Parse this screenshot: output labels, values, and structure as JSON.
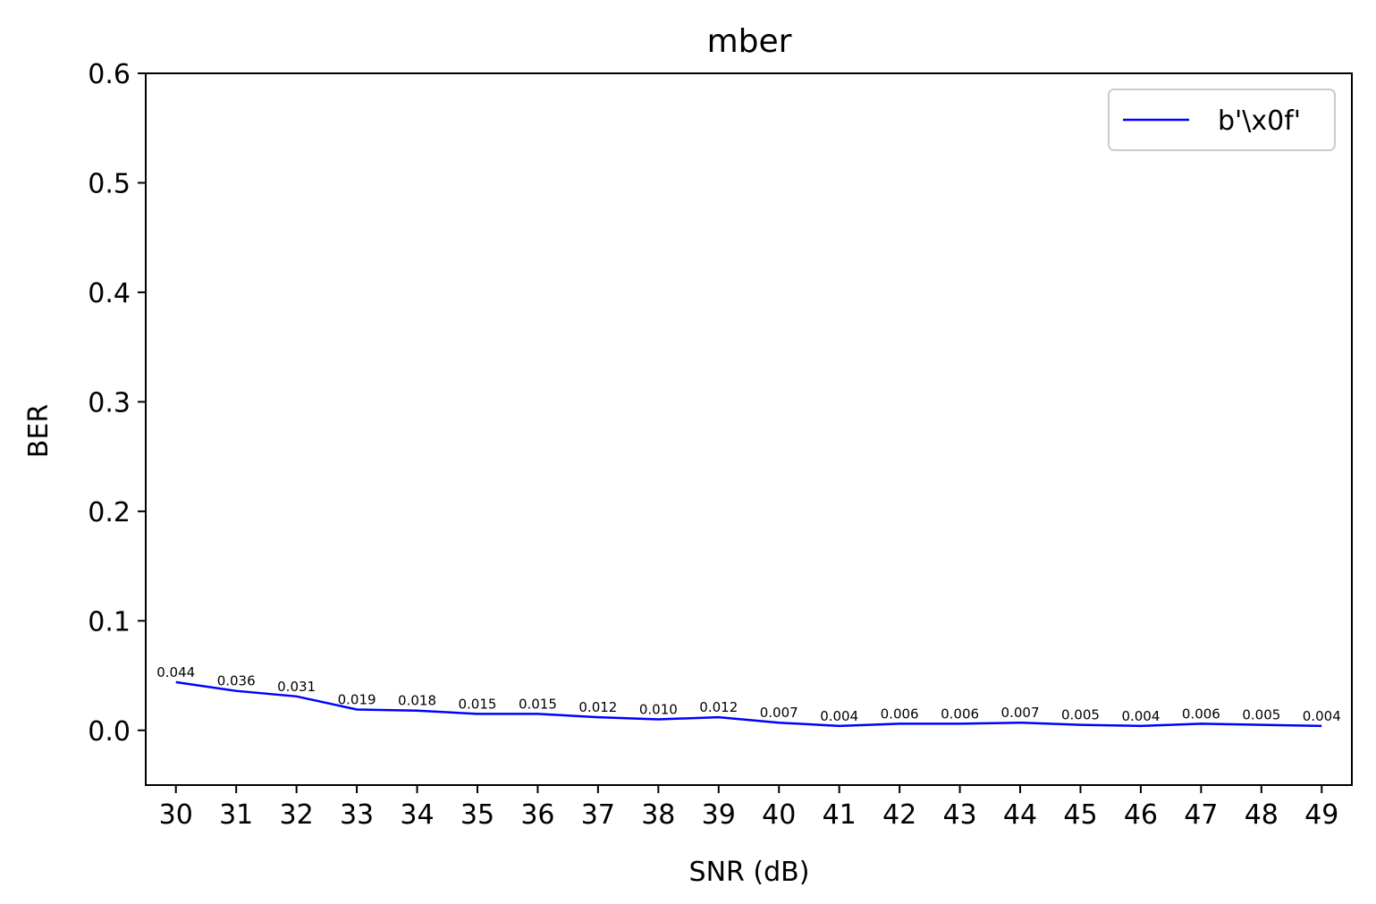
{
  "chart_data": {
    "type": "line",
    "title": "mber",
    "xlabel": "SNR (dB)",
    "ylabel": "BER",
    "x": [
      30,
      31,
      32,
      33,
      34,
      35,
      36,
      37,
      38,
      39,
      40,
      41,
      42,
      43,
      44,
      45,
      46,
      47,
      48,
      49
    ],
    "xticks": [
      "30",
      "31",
      "32",
      "33",
      "34",
      "35",
      "36",
      "37",
      "38",
      "39",
      "40",
      "41",
      "42",
      "43",
      "44",
      "45",
      "46",
      "47",
      "48",
      "49"
    ],
    "yticks": [
      "0.0",
      "0.1",
      "0.2",
      "0.3",
      "0.4",
      "0.5",
      "0.6"
    ],
    "ytick_values": [
      0.0,
      0.1,
      0.2,
      0.3,
      0.4,
      0.5,
      0.6
    ],
    "ylim": [
      -0.05,
      0.6
    ],
    "xlim": [
      29.5,
      49.5
    ],
    "grid": false,
    "legend_position": "top-right",
    "series": [
      {
        "name": "b'\\x0f'",
        "color": "#0000ff",
        "values": [
          0.044,
          0.036,
          0.031,
          0.019,
          0.018,
          0.015,
          0.015,
          0.012,
          0.01,
          0.012,
          0.007,
          0.004,
          0.006,
          0.006,
          0.007,
          0.005,
          0.004,
          0.006,
          0.005,
          0.004
        ],
        "labels": [
          "0.044",
          "0.036",
          "0.031",
          "0.019",
          "0.018",
          "0.015",
          "0.015",
          "0.012",
          "0.010",
          "0.012",
          "0.007",
          "0.004",
          "0.006",
          "0.006",
          "0.007",
          "0.005",
          "0.004",
          "0.006",
          "0.005",
          "0.004"
        ]
      }
    ]
  }
}
